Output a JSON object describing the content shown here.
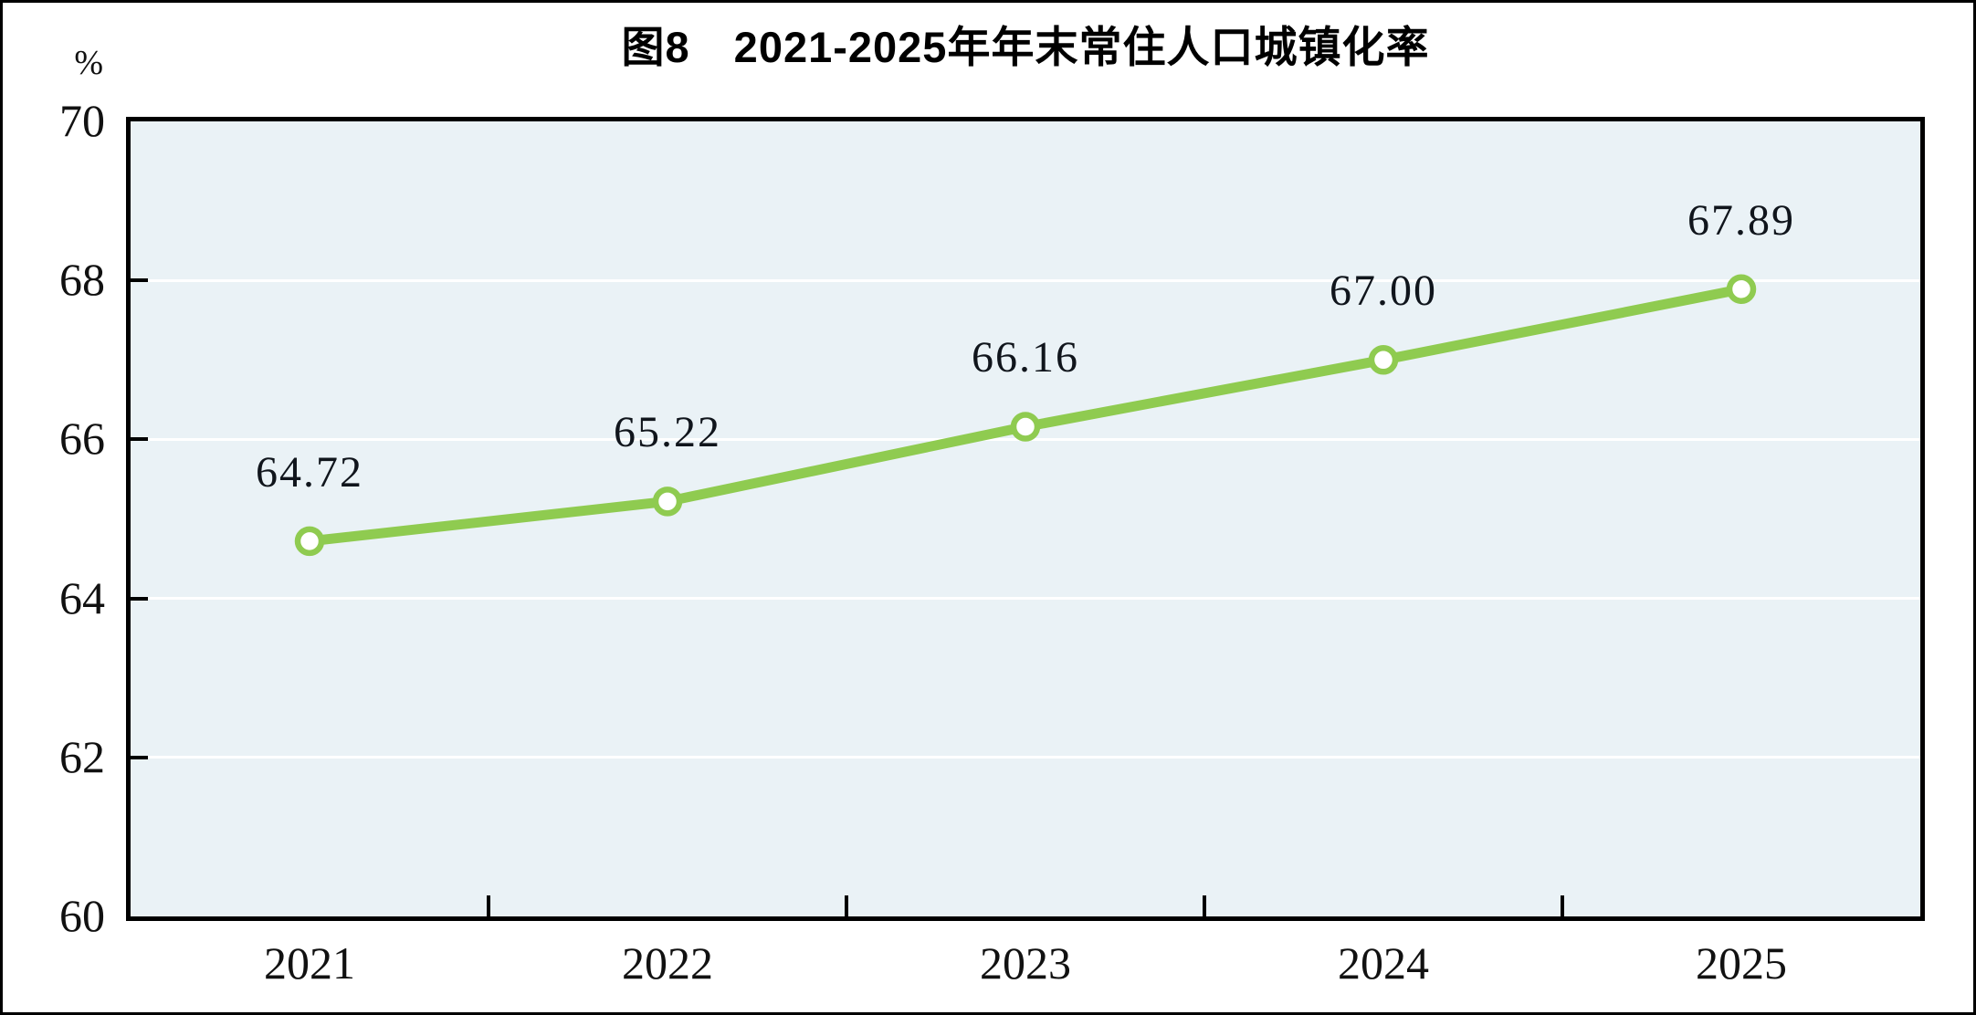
{
  "chart_data": {
    "type": "line",
    "title": "图8　2021-2025年年末常住人口城镇化率",
    "unit_label": "%",
    "categories": [
      "2021",
      "2022",
      "2023",
      "2024",
      "2025"
    ],
    "series": [
      {
        "values": [
          64.72,
          65.22,
          66.16,
          67.0,
          67.89
        ]
      }
    ],
    "data_labels": [
      "64.72",
      "65.22",
      "66.16",
      "67.00",
      "67.89"
    ],
    "yticks": [
      70,
      68,
      66,
      64,
      62,
      60
    ],
    "ylim": [
      60,
      70
    ],
    "grid": "horizontal-white",
    "legend": "none",
    "colors": {
      "line": "#8FCB50",
      "marker_fill": "#FFFFFF",
      "plot_bg": "#EAF2F6",
      "gridline": "#FFFFFF",
      "axis_border": "#000000",
      "text": "#111111"
    }
  }
}
